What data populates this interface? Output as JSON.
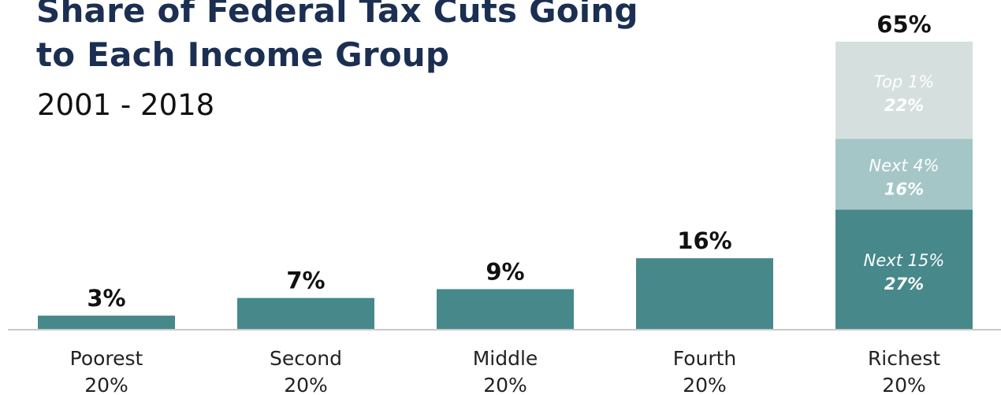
{
  "header": {
    "title_line1": "Share of Federal Tax Cuts Going",
    "title_line2": "to Each Income Group",
    "subtitle": "2001 - 2018"
  },
  "colors": {
    "bar": "#47888a",
    "seg_next15": "#47888a",
    "seg_next4": "#a5c6c6",
    "seg_top1": "#d5dfde",
    "axis": "#c8c8c8"
  },
  "chart_data": {
    "type": "bar",
    "title": "Share of Federal Tax Cuts Going to Each Income Group",
    "subtitle": "2001 - 2018",
    "categories": [
      "Poorest 20%",
      "Second 20%",
      "Middle 20%",
      "Fourth 20%",
      "Richest 20%"
    ],
    "category_lines": [
      [
        "Poorest",
        "20%"
      ],
      [
        "Second",
        "20%"
      ],
      [
        "Middle",
        "20%"
      ],
      [
        "Fourth",
        "20%"
      ],
      [
        "Richest",
        "20%"
      ]
    ],
    "values": [
      3,
      7,
      9,
      16,
      65
    ],
    "value_labels": [
      "3%",
      "7%",
      "9%",
      "16%",
      "65%"
    ],
    "ylim": [
      0,
      65
    ],
    "grid": false,
    "stacked_breakdown": {
      "category": "Richest 20%",
      "segments": [
        {
          "name": "Next 15%",
          "value": 27,
          "label": "27%"
        },
        {
          "name": "Next 4%",
          "value": 16,
          "label": "16%"
        },
        {
          "name": "Top 1%",
          "value": 22,
          "label": "22%"
        }
      ]
    }
  }
}
